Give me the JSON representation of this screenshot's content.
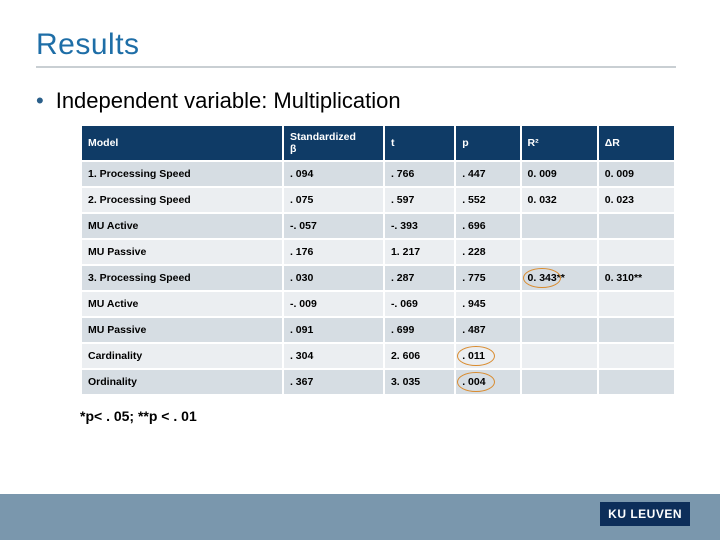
{
  "colors": {
    "title": "#1e6ea7",
    "underline": "#c9cfd3",
    "bullet": "#2a5f8a",
    "header_bg": "#0f3b66",
    "row_alt_a": "#d6dde3",
    "row_alt_b": "#ebeef1",
    "footer_bg": "#7a97ad",
    "logo_bg": "#0d2e5a",
    "circle": "#d98b2e"
  },
  "title": "Results",
  "bullet": "Independent variable: Multiplication",
  "table": {
    "columns": [
      "Model",
      "Standardized β",
      "t",
      "p",
      "R²",
      "ΔR"
    ],
    "rows": [
      [
        "1. Processing Speed",
        ". 094",
        ". 766",
        ". 447",
        "0. 009",
        "0. 009"
      ],
      [
        "2. Processing Speed",
        ". 075",
        ". 597",
        ". 552",
        "0. 032",
        "0. 023"
      ],
      [
        "MU Active",
        "-. 057",
        "-. 393",
        ". 696",
        "",
        ""
      ],
      [
        "MU Passive",
        ". 176",
        "1. 217",
        ". 228",
        "",
        ""
      ],
      [
        "3. Processing Speed",
        ". 030",
        ". 287",
        ". 775",
        "0. 343**",
        "0. 310**"
      ],
      [
        "MU Active",
        "-. 009",
        "-. 069",
        ". 945",
        "",
        ""
      ],
      [
        "MU Passive",
        ". 091",
        ". 699",
        ". 487",
        "",
        ""
      ],
      [
        "Cardinality",
        ". 304",
        "2. 606",
        ". 011",
        "",
        ""
      ],
      [
        "Ordinality",
        ". 367",
        "3. 035",
        ". 004",
        "",
        ""
      ]
    ],
    "circled": [
      {
        "row": 4,
        "col": 4
      },
      {
        "row": 7,
        "col": 3
      },
      {
        "row": 8,
        "col": 3
      }
    ]
  },
  "footnote": "*p< . 05; **p < . 01",
  "logo": "KU LEUVEN"
}
